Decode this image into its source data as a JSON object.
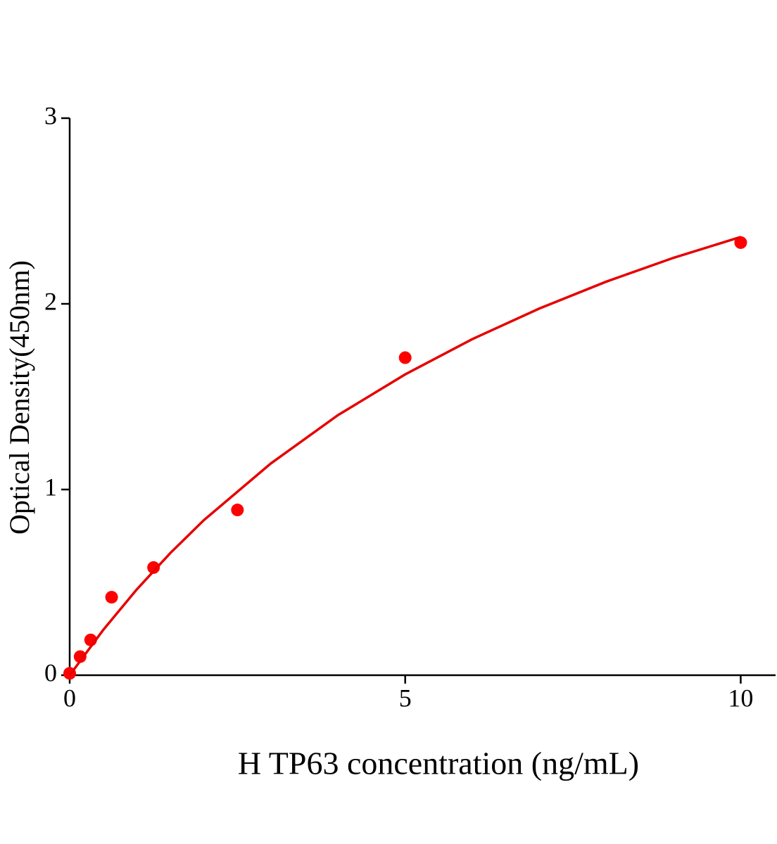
{
  "chart_data": {
    "type": "scatter",
    "x_label": "H TP63 concentration (ng/mL)",
    "y_label": "Optical Density(450nm)",
    "xlim": [
      0,
      10.52
    ],
    "ylim": [
      0,
      3
    ],
    "xticks": [
      0,
      5,
      10
    ],
    "yticks": [
      0,
      1,
      2,
      3
    ],
    "series": [
      {
        "style": "markers",
        "color": "#ff0000",
        "x": [
          0,
          0.156,
          0.3125,
          0.625,
          1.25,
          2.5,
          5,
          10
        ],
        "values": [
          0.01,
          0.1,
          0.19,
          0.42,
          0.58,
          0.89,
          1.71,
          2.33
        ]
      },
      {
        "style": "line",
        "color": "#e60000",
        "x": [
          0,
          0.5,
          1,
          1.5,
          2,
          3,
          4,
          5,
          6,
          7,
          8,
          9,
          10
        ],
        "values": [
          0,
          0.244,
          0.462,
          0.658,
          0.835,
          1.141,
          1.401,
          1.62,
          1.81,
          1.975,
          2.12,
          2.248,
          2.36
        ]
      }
    ]
  }
}
